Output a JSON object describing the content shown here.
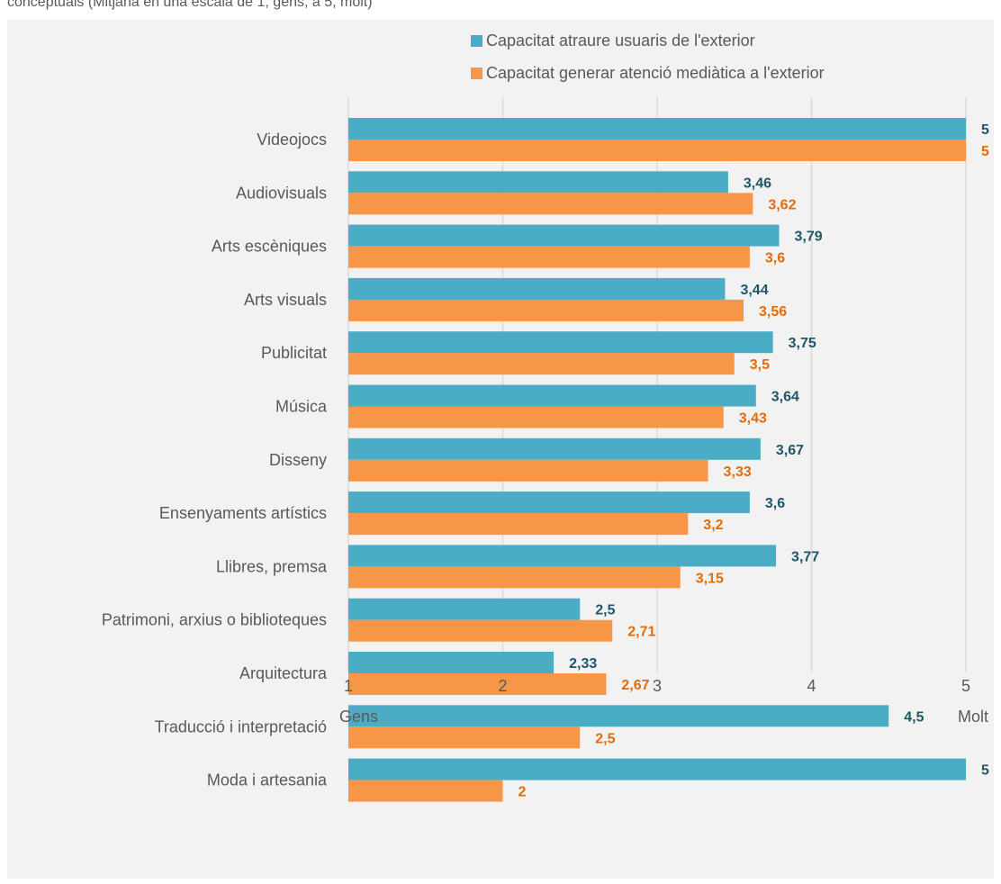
{
  "caption": "conceptuals (Mitjana en una escala de 1, gens, a 5, molt)",
  "colors": {
    "series1": "#4bacc6",
    "series2": "#f79646",
    "label1": "#1f5766",
    "label2": "#e36c09",
    "grid": "#d9d9d9",
    "text": "#595959",
    "background": "#f2f2f2"
  },
  "chart_data": {
    "type": "bar",
    "orientation": "horizontal",
    "title": "",
    "xlabel": "",
    "ylabel": "",
    "categories": [
      "Videojocs",
      "Audiovisuals ",
      "Arts escèniques",
      "Arts visuals",
      "Publicitat",
      "Música",
      "Disseny",
      "Ensenyaments artístics ",
      "Llibres, premsa",
      "Patrimoni, arxius o biblioteques",
      "Arquitectura",
      "Traducció i interpretació",
      "Moda i artesania"
    ],
    "series": [
      {
        "name": "Capacitat atraure usuaris de l'exterior",
        "values": [
          5,
          3.46,
          3.79,
          3.44,
          3.75,
          3.64,
          3.67,
          3.6,
          3.77,
          2.5,
          2.33,
          4.5,
          5
        ],
        "labels": [
          "5",
          "3,46",
          "3,79",
          "3,44",
          "3,75",
          "3,64",
          "3,67",
          "3,6",
          "3,77",
          "2,5",
          "2,33",
          "4,5",
          "5"
        ]
      },
      {
        "name": "Capacitat generar atenció mediàtica a l'exterior",
        "values": [
          5,
          3.62,
          3.6,
          3.56,
          3.5,
          3.43,
          3.33,
          3.2,
          3.15,
          2.71,
          2.67,
          2.5,
          2
        ],
        "labels": [
          "5",
          "3,62",
          "3,6",
          "3,56",
          "3,5",
          "3,43",
          "3,33",
          "3,2",
          "3,15",
          "2,71",
          "2,67",
          "2,5",
          "2"
        ]
      }
    ],
    "xlim": [
      1,
      5
    ],
    "x_ticks": [
      1,
      2,
      3,
      4,
      5
    ],
    "x_tick_labels": [
      "1",
      "2",
      "3",
      "4",
      "5"
    ],
    "x_end_labels": [
      "Gens",
      "Molt"
    ],
    "grid": true,
    "legend_position": "top"
  }
}
